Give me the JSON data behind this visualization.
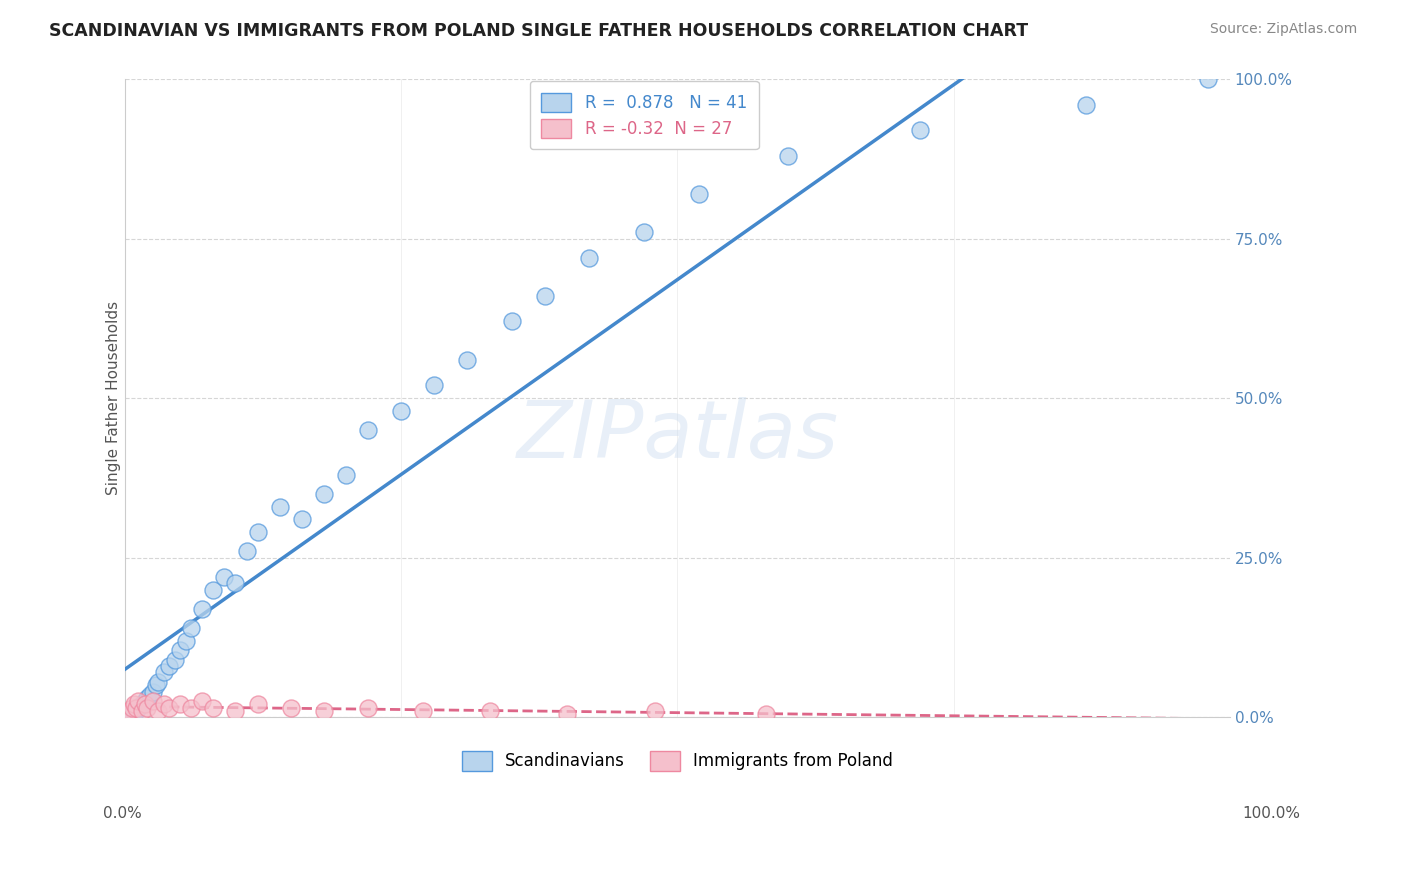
{
  "title": "SCANDINAVIAN VS IMMIGRANTS FROM POLAND SINGLE FATHER HOUSEHOLDS CORRELATION CHART",
  "source": "Source: ZipAtlas.com",
  "watermark": "ZIPatlas",
  "ylabel_label": "Single Father Households",
  "y_ticks": [
    0.0,
    25.0,
    50.0,
    75.0,
    100.0
  ],
  "x_ticks": [
    0.0,
    25.0,
    50.0,
    75.0,
    100.0
  ],
  "blue_R": 0.878,
  "blue_N": 41,
  "pink_R": -0.32,
  "pink_N": 27,
  "blue_color": "#b8d4ed",
  "blue_edge_color": "#5599dd",
  "blue_line_color": "#4488cc",
  "pink_color": "#f5c0cc",
  "pink_edge_color": "#ee88a0",
  "pink_line_color": "#dd6688",
  "background_color": "#ffffff",
  "grid_color": "#cccccc",
  "scandinavians_label": "Scandinavians",
  "poland_label": "Immigrants from Poland",
  "title_color": "#222222",
  "source_color": "#888888",
  "axis_label_color": "#555555",
  "right_tick_color": "#5588bb",
  "blue_scatter_x": [
    0.3,
    0.5,
    0.8,
    1.0,
    1.2,
    1.5,
    1.8,
    2.0,
    2.3,
    2.5,
    2.8,
    3.0,
    3.5,
    4.0,
    4.5,
    5.0,
    5.5,
    6.0,
    7.0,
    8.0,
    9.0,
    10.0,
    11.0,
    12.0,
    14.0,
    16.0,
    18.0,
    20.0,
    22.0,
    25.0,
    28.0,
    31.0,
    35.0,
    38.0,
    42.0,
    47.0,
    52.0,
    60.0,
    72.0,
    87.0,
    98.0
  ],
  "blue_scatter_y": [
    0.2,
    0.5,
    0.8,
    1.0,
    1.5,
    2.0,
    2.5,
    3.0,
    3.5,
    4.0,
    5.0,
    5.5,
    7.0,
    8.0,
    9.0,
    10.5,
    12.0,
    14.0,
    17.0,
    20.0,
    22.0,
    21.0,
    26.0,
    29.0,
    33.0,
    31.0,
    35.0,
    38.0,
    45.0,
    48.0,
    52.0,
    56.0,
    62.0,
    66.0,
    72.0,
    76.0,
    82.0,
    88.0,
    92.0,
    96.0,
    100.0
  ],
  "pink_scatter_x": [
    0.2,
    0.4,
    0.6,
    0.8,
    1.0,
    1.2,
    1.5,
    1.8,
    2.0,
    2.5,
    3.0,
    3.5,
    4.0,
    5.0,
    6.0,
    7.0,
    8.0,
    10.0,
    12.0,
    15.0,
    18.0,
    22.0,
    27.0,
    33.0,
    40.0,
    48.0,
    58.0
  ],
  "pink_scatter_y": [
    0.5,
    1.0,
    1.5,
    2.0,
    1.5,
    2.5,
    1.0,
    2.0,
    1.5,
    2.5,
    1.0,
    2.0,
    1.5,
    2.0,
    1.5,
    2.5,
    1.5,
    1.0,
    2.0,
    1.5,
    1.0,
    1.5,
    1.0,
    1.0,
    0.5,
    1.0,
    0.5
  ]
}
